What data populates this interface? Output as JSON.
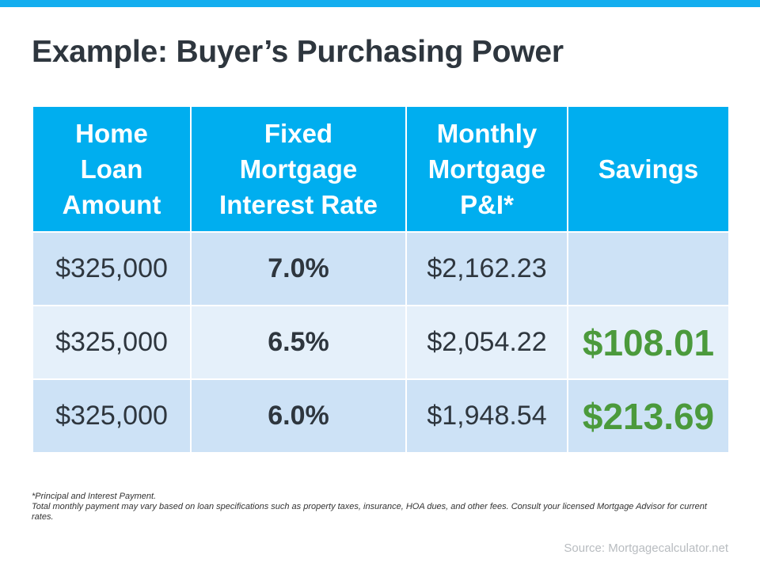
{
  "title": "Example: Buyer’s Purchasing Power",
  "table": {
    "headers": [
      "Home Loan Amount",
      "Fixed Mortgage Interest Rate",
      "Monthly Mortgage P&I*",
      "Savings"
    ],
    "rows": [
      [
        "$325,000",
        "7.0%",
        "$2,162.23",
        ""
      ],
      [
        "$325,000",
        "6.5%",
        "$2,054.22",
        "$108.01"
      ],
      [
        "$325,000",
        "6.0%",
        "$1,948.54",
        "$213.69"
      ]
    ]
  },
  "notes": {
    "line1": "*Principal and Interest Payment.",
    "line2": "Total monthly payment may vary based on loan specifications such as property taxes, insurance, HOA dues, and other fees. Consult your licensed Mortgage Advisor for current rates."
  },
  "source": "Source: Mortgagecalculator.net",
  "colors": {
    "accent": "#00aeef",
    "savings": "#4b9a3c"
  }
}
